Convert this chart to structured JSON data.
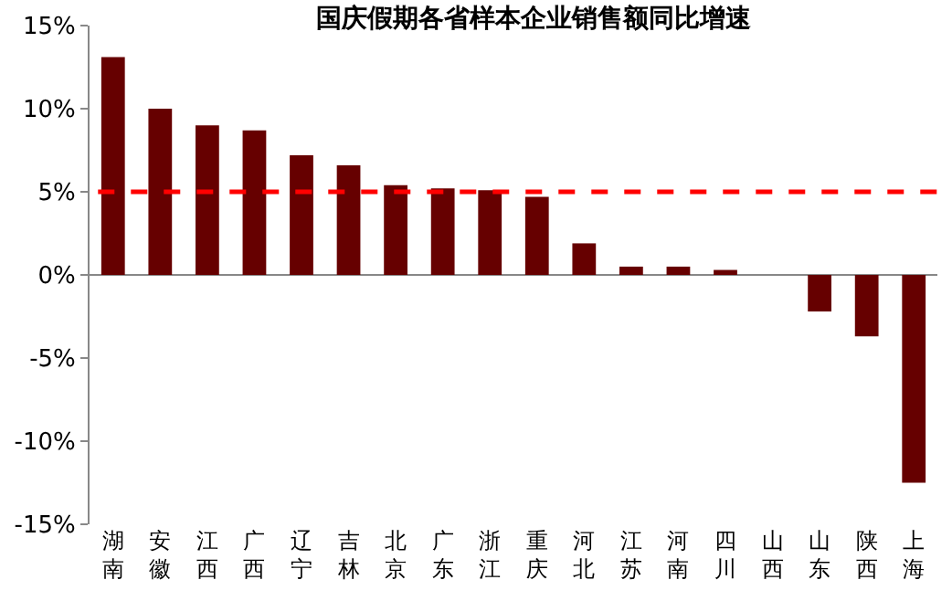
{
  "chart_data": {
    "type": "bar",
    "title": "国庆假期各省样本企业销售额同比增速",
    "categories": [
      "湖南",
      "安徽",
      "江西",
      "广西",
      "辽宁",
      "吉林",
      "北京",
      "广东",
      "浙江",
      "重庆",
      "河北",
      "江苏",
      "河南",
      "四川",
      "山西",
      "山东",
      "陕西",
      "上海"
    ],
    "values": [
      13.1,
      10.0,
      9.0,
      8.7,
      7.2,
      6.6,
      5.4,
      5.2,
      5.1,
      4.7,
      1.9,
      0.5,
      0.5,
      0.3,
      0.0,
      -2.2,
      -3.7,
      -12.5
    ],
    "color": "#660000",
    "ylim": [
      -15,
      15
    ],
    "yticks": [
      {
        "value": -15,
        "label": "-15%"
      },
      {
        "value": -10,
        "label": "-10%"
      },
      {
        "value": -5,
        "label": "-5%"
      },
      {
        "value": 0,
        "label": "0%"
      },
      {
        "value": 5,
        "label": "5%"
      },
      {
        "value": 10,
        "label": "10%"
      },
      {
        "value": 15,
        "label": "15%"
      }
    ],
    "ref_lines": [
      {
        "axis": "y",
        "value": 5,
        "color": "#ff0000",
        "line_style": "dashed"
      }
    ]
  }
}
